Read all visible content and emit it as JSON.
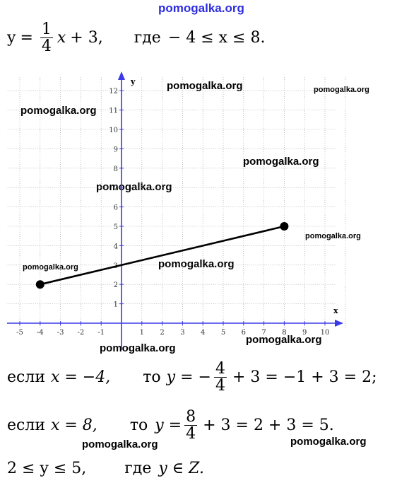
{
  "watermarks": {
    "top": "pomogalka.org",
    "w1": "pomogalka.org",
    "w2": "pomogalka.org",
    "w3": "pomogalka.org",
    "w4": "pomogalka.org",
    "w5": "pomogalka.org",
    "w6": "pomogalka.org",
    "w7": "pomogalka.org",
    "w8": "pomogalka.org",
    "w9": "pomogalka.org",
    "w10": "pomogalka.org",
    "w11": "pomogalka.org",
    "w12": "pomogalka.org"
  },
  "formula": {
    "y": "y",
    "eq": "=",
    "num": "1",
    "den": "4",
    "x": "x",
    "tail": "+ 3,",
    "where": "где",
    "range": "− 4 ≤ x ≤ 8."
  },
  "line2": {
    "if": "если",
    "cond": "x = −4,",
    "then": "то",
    "lhs": "y = −",
    "num": "4",
    "den": "4",
    "rhs": "+ 3 = −1 + 3 = 2;"
  },
  "line3": {
    "if": "если",
    "cond": "x = 8,",
    "then": "то",
    "lhs": "y =",
    "num": "8",
    "den": "4",
    "rhs": "+ 3 = 2 + 3 = 5."
  },
  "line4": {
    "range": "2 ≤ y ≤ 5,",
    "where": "где",
    "set": "y ∈ Z."
  },
  "graph": {
    "x_axis_label": "x",
    "y_axis_label": "y",
    "x_ticks": [
      "-5",
      "-4",
      "-3",
      "-2",
      "-1",
      "1",
      "2",
      "3",
      "4",
      "5",
      "6",
      "7",
      "8",
      "9",
      "10"
    ],
    "y_ticks": [
      "1",
      "2",
      "3",
      "4",
      "5",
      "6",
      "7",
      "8",
      "9",
      "10",
      "11",
      "12"
    ],
    "segment": {
      "x1": -4,
      "y1": 2,
      "x2": 8,
      "y2": 5
    },
    "line_color": "#000000",
    "axis_color": "#3a3ae8",
    "grid_color": "#9a9a9a"
  }
}
